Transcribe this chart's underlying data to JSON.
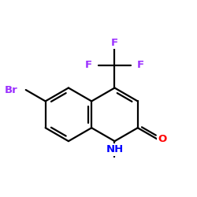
{
  "bg_color": "#ffffff",
  "bond_color": "#000000",
  "bond_width": 1.6,
  "atom_colors": {
    "Br": "#9b30ff",
    "F": "#9b30ff",
    "N": "#0000ff",
    "O": "#ff0000",
    "C": "#000000"
  },
  "font_size": 9.5,
  "xlim": [
    -3.5,
    3.8
  ],
  "ylim": [
    -2.8,
    3.2
  ]
}
